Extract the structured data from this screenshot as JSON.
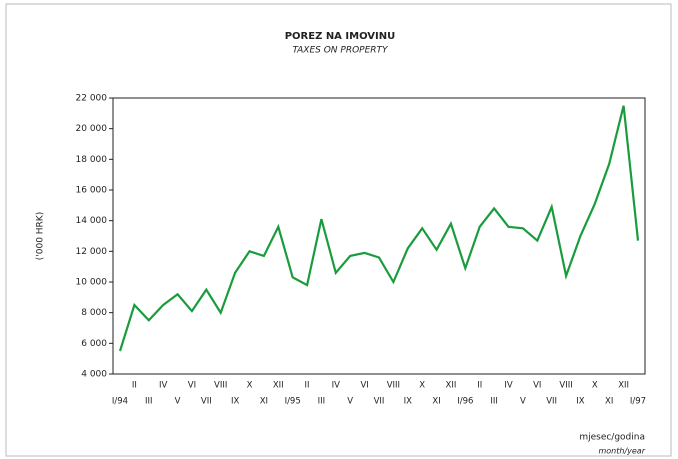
{
  "chart_data": {
    "type": "line",
    "title": "POREZ NA IMOVINU",
    "subtitle": "TAXES ON PROPERTY",
    "y_label": "('000 HRK)",
    "x_label": "mjesec/godina",
    "x_label_sub": "month/year",
    "categories": [
      "I/94",
      "II",
      "III",
      "IV",
      "V",
      "VI",
      "VII",
      "VIII",
      "IX",
      "X",
      "XI",
      "XII",
      "I/95",
      "II",
      "III",
      "IV",
      "V",
      "VI",
      "VII",
      "VIII",
      "IX",
      "X",
      "XI",
      "XII",
      "I/96",
      "II",
      "III",
      "IV",
      "V",
      "VI",
      "VII",
      "VIII",
      "IX",
      "X",
      "XI",
      "XII",
      "I/97"
    ],
    "series": [
      {
        "name": "Porez na imovinu",
        "color": "#1a9c3e",
        "values": [
          5500,
          8500,
          7500,
          8500,
          9200,
          8100,
          9500,
          8000,
          10600,
          12000,
          11700,
          13600,
          10300,
          9800,
          14100,
          10600,
          11700,
          11900,
          11600,
          10000,
          12200,
          13500,
          12100,
          13800,
          10900,
          13600,
          14800,
          13600,
          13500,
          12700,
          14900,
          10400,
          13000,
          15100,
          17700,
          21500,
          12700
        ]
      }
    ],
    "ylim": [
      4000,
      22000
    ],
    "yticks": [
      {
        "value": 4000,
        "label": "4 000"
      },
      {
        "value": 6000,
        "label": "6 000"
      },
      {
        "value": 8000,
        "label": "8 000"
      },
      {
        "value": 10000,
        "label": "10 000"
      },
      {
        "value": 12000,
        "label": "12 000"
      },
      {
        "value": 14000,
        "label": "14 000"
      },
      {
        "value": 16000,
        "label": "16 000"
      },
      {
        "value": 18000,
        "label": "18 000"
      },
      {
        "value": 20000,
        "label": "20 000"
      },
      {
        "value": 22000,
        "label": "22 000"
      }
    ],
    "grid": false
  }
}
